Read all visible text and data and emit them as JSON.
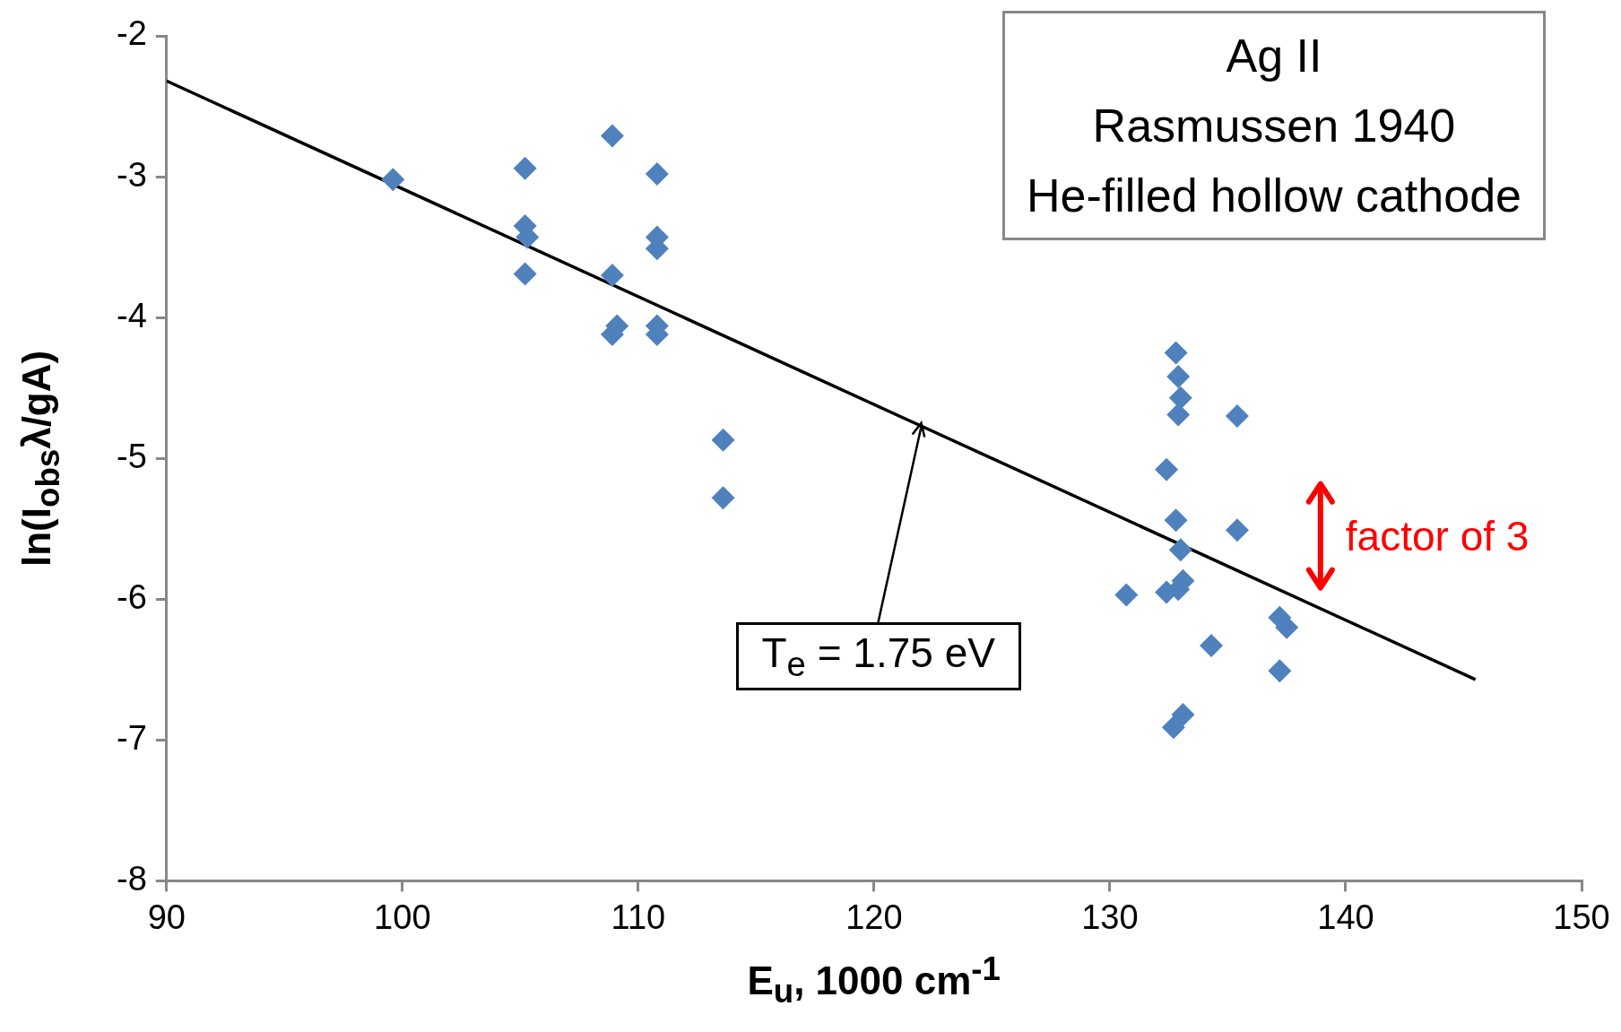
{
  "chart_data": {
    "type": "scatter",
    "title": "Ag II",
    "subtitle": "Rasmussen 1940\nHe-filled hollow cathode",
    "xlabel": "E$_{u}$, 1000 cm$^{-1}$",
    "ylabel": "ln(I$_{obs}$λ/gA)",
    "xlim": [
      90,
      150
    ],
    "xticks": [
      90,
      100,
      110,
      120,
      130,
      140,
      150
    ],
    "ylim": [
      -8,
      -2
    ],
    "yticks": [
      -8,
      -7,
      -6,
      -5,
      -4,
      -3,
      -2
    ],
    "grid": false,
    "legend": false,
    "series": [
      {
        "type": "scatter",
        "marker": "diamond",
        "color": "#4f81bd",
        "x": [
          99.6,
          105.2,
          105.2,
          105.3,
          105.2,
          108.9,
          108.9,
          108.9,
          109.1,
          110.8,
          110.8,
          110.8,
          110.8,
          110.8,
          113.6,
          113.6,
          132.8,
          132.9,
          133.0,
          132.9,
          135.4,
          132.4,
          132.8,
          133.0,
          133.1,
          132.9,
          132.4,
          130.7,
          135.4,
          134.3,
          137.2,
          137.5,
          137.2,
          133.1,
          132.7
        ],
        "values": [
          -3.02,
          -2.94,
          -3.35,
          -3.43,
          -3.69,
          -2.71,
          -3.7,
          -4.12,
          -4.06,
          -2.98,
          -3.43,
          -3.51,
          -4.06,
          -4.12,
          -4.87,
          -5.28,
          -4.25,
          -4.42,
          -4.57,
          -4.69,
          -4.7,
          -5.08,
          -5.44,
          -5.65,
          -5.87,
          -5.93,
          -5.95,
          -5.97,
          -5.51,
          -6.33,
          -6.13,
          -6.2,
          -6.51,
          -6.82,
          -6.91
        ]
      },
      {
        "type": "line",
        "marker": "none",
        "color": "#000000",
        "x": [
          90,
          145.5
        ],
        "values": [
          -2.32,
          -6.57
        ]
      }
    ],
    "annotations": [
      {
        "text": "T$_{e}$ = 1.75 eV",
        "x": 122,
        "y": -4.75
      },
      "factor of 3"
    ]
  }
}
